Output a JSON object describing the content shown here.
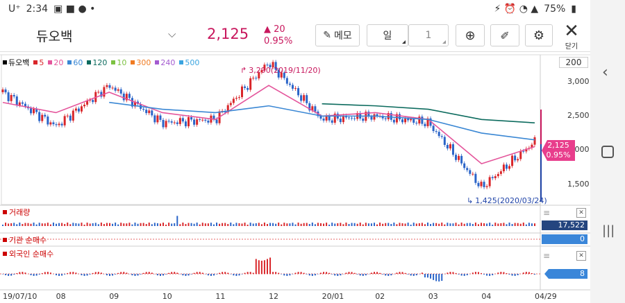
{
  "status_bar": {
    "carrier": "U⁺",
    "time": "2:34",
    "battery": "75%"
  },
  "toolbar": {
    "stock_name": "듀오백",
    "price": "2,125",
    "change": "20",
    "change_pct": "0.95%",
    "memo_label": "메모",
    "period_label": "일",
    "period_value": "1",
    "close_label": "닫기"
  },
  "legend": [
    {
      "label": "듀오백",
      "color": "#000000"
    },
    {
      "label": "5",
      "color": "#d9262a"
    },
    {
      "label": "20",
      "color": "#e4559b"
    },
    {
      "label": "60",
      "color": "#3a87d4"
    },
    {
      "label": "120",
      "color": "#0c6b5e"
    },
    {
      "label": "10",
      "color": "#7cc242"
    },
    {
      "label": "300",
      "color": "#f07b22"
    },
    {
      "label": "240",
      "color": "#a45bd0"
    },
    {
      "label": "500",
      "color": "#3aa4e0"
    }
  ],
  "y_axis": {
    "top_label": "200",
    "ticks": [
      "3,000",
      "2,500",
      "2,000",
      "1,500"
    ]
  },
  "price_tag": {
    "price": "2,125",
    "pct": "0.95%"
  },
  "annotations": {
    "high": "3,290(2019/11/20)",
    "low": "1,425(2020/03/24)"
  },
  "panels": {
    "volume_title": "거래량",
    "volume_value": "17,522",
    "inst_title": "기관 순매수",
    "inst_value": "0",
    "foreign_title": "외국인 순매수",
    "foreign_value": "8"
  },
  "x_axis": {
    "labels": [
      "19/07/10",
      "08",
      "09",
      "10",
      "11",
      "12",
      "20/01",
      "02",
      "03",
      "04",
      "04/29"
    ]
  },
  "chart_data": {
    "type": "line",
    "ylim": [
      1200,
      3400
    ],
    "x": [
      "19/07/10",
      "08",
      "09",
      "10",
      "11",
      "12",
      "20/01",
      "02",
      "03",
      "04",
      "04/29"
    ],
    "series": [
      {
        "name": "듀오백",
        "values": [
          2850,
          2350,
          2950,
          2400,
          2450,
          3290,
          2450,
          2500,
          2400,
          1450,
          2125
        ]
      },
      {
        "name": "20",
        "values": [
          2700,
          2550,
          2850,
          2550,
          2450,
          2950,
          2500,
          2550,
          2450,
          1800,
          2050
        ]
      },
      {
        "name": "60",
        "values": [
          null,
          null,
          2700,
          2600,
          2550,
          2650,
          2500,
          2500,
          2450,
          2250,
          2150
        ]
      },
      {
        "name": "120",
        "values": [
          null,
          null,
          null,
          null,
          null,
          null,
          2680,
          2650,
          2600,
          2450,
          2400
        ]
      }
    ]
  }
}
